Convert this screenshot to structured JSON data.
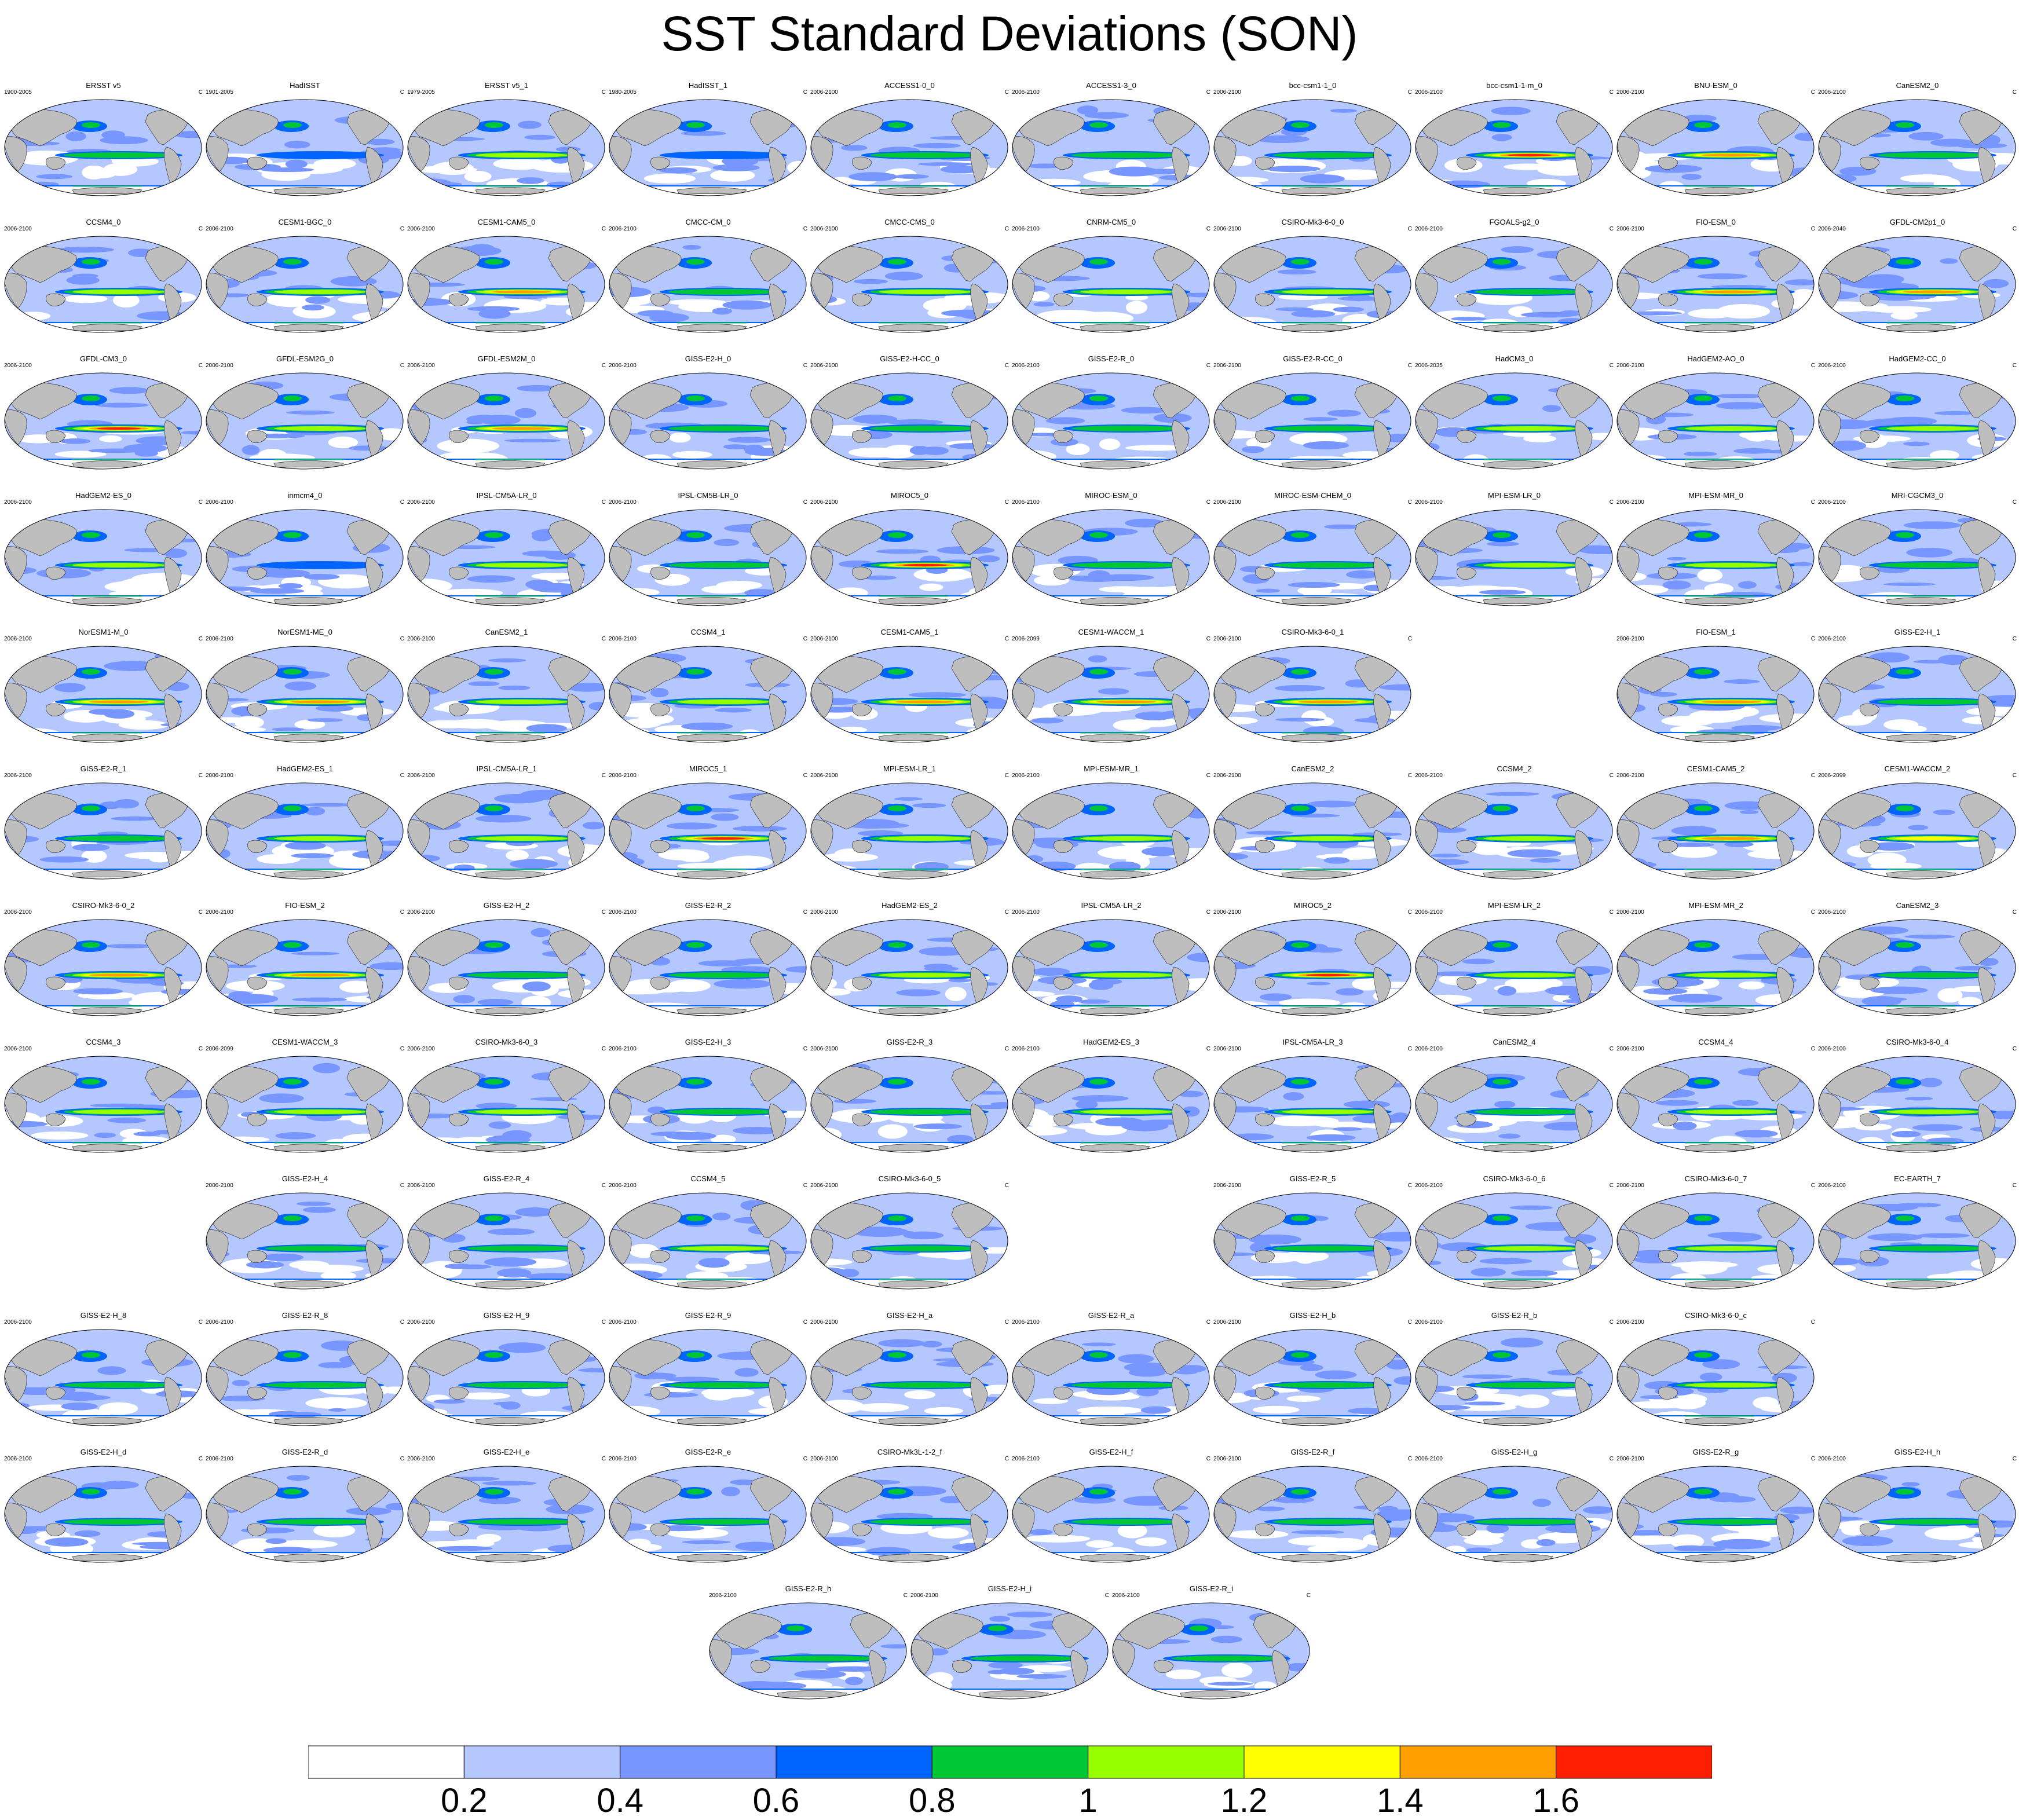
{
  "title": "SST Standard Deviations (SON)",
  "unit": "C",
  "colorbar": {
    "labels": [
      "0.2",
      "0.4",
      "0.6",
      "0.8",
      "1",
      "1.2",
      "1.4",
      "1.6"
    ],
    "bin_edges": [
      0,
      0.2,
      0.4,
      0.6,
      0.8,
      1.0,
      1.2,
      1.4,
      1.6,
      1.8
    ],
    "colors": [
      "#ffffff",
      "#b4c8ff",
      "#7896ff",
      "#0064ff",
      "#00c832",
      "#96ff00",
      "#ffff00",
      "#ffa000",
      "#ff1e00"
    ]
  },
  "panels": [
    {
      "name": "ERSST v5",
      "period": "1900-2005",
      "intensity": 0.45
    },
    {
      "name": "HadISST",
      "period": "1901-2005",
      "intensity": 0.2
    },
    {
      "name": "ERSST v5_1",
      "period": "1979-2005",
      "intensity": 0.5
    },
    {
      "name": "HadISST_1",
      "period": "1980-2005",
      "intensity": 0.25
    },
    {
      "name": "ACCESS1-0_0",
      "period": "2006-2100",
      "intensity": 0.35
    },
    {
      "name": "ACCESS1-3_0",
      "period": "2006-2100",
      "intensity": 0.4
    },
    {
      "name": "bcc-csm1-1_0",
      "period": "2006-2100",
      "intensity": 0.45
    },
    {
      "name": "bcc-csm1-1-m_0",
      "period": "2006-2100",
      "intensity": 0.85
    },
    {
      "name": "BNU-ESM_0",
      "period": "2006-2100",
      "intensity": 0.8
    },
    {
      "name": "CanESM2_0",
      "period": "2006-2100",
      "intensity": 0.45
    },
    {
      "name": "CCSM4_0",
      "period": "2006-2100",
      "intensity": 0.5
    },
    {
      "name": "CESM1-BGC_0",
      "period": "2006-2100",
      "intensity": 0.5
    },
    {
      "name": "CESM1-CAM5_0",
      "period": "2006-2100",
      "intensity": 0.8
    },
    {
      "name": "CMCC-CM_0",
      "period": "2006-2100",
      "intensity": 0.45
    },
    {
      "name": "CMCC-CMS_0",
      "period": "2006-2100",
      "intensity": 0.55
    },
    {
      "name": "CNRM-CM5_0",
      "period": "2006-2100",
      "intensity": 0.55
    },
    {
      "name": "CSIRO-Mk3-6-0_0",
      "period": "2006-2100",
      "intensity": 0.6
    },
    {
      "name": "FGOALS-g2_0",
      "period": "2006-2100",
      "intensity": 0.45
    },
    {
      "name": "FIO-ESM_0",
      "period": "2006-2100",
      "intensity": 0.75
    },
    {
      "name": "GFDL-CM2p1_0",
      "period": "2006-2040",
      "intensity": 0.75
    },
    {
      "name": "GFDL-CM3_0",
      "period": "2006-2100",
      "intensity": 0.85
    },
    {
      "name": "GFDL-ESM2G_0",
      "period": "2006-2100",
      "intensity": 0.55
    },
    {
      "name": "GFDL-ESM2M_0",
      "period": "2006-2100",
      "intensity": 0.75
    },
    {
      "name": "GISS-E2-H_0",
      "period": "2006-2100",
      "intensity": 0.3
    },
    {
      "name": "GISS-E2-H-CC_0",
      "period": "2006-2100",
      "intensity": 0.3
    },
    {
      "name": "GISS-E2-R_0",
      "period": "2006-2100",
      "intensity": 0.3
    },
    {
      "name": "GISS-E2-R-CC_0",
      "period": "2006-2100",
      "intensity": 0.3
    },
    {
      "name": "HadCM3_0",
      "period": "2006-2035",
      "intensity": 0.55
    },
    {
      "name": "HadGEM2-AO_0",
      "period": "2006-2100",
      "intensity": 0.5
    },
    {
      "name": "HadGEM2-CC_0",
      "period": "2006-2100",
      "intensity": 0.5
    },
    {
      "name": "HadGEM2-ES_0",
      "period": "2006-2100",
      "intensity": 0.5
    },
    {
      "name": "inmcm4_0",
      "period": "2006-2100",
      "intensity": 0.15
    },
    {
      "name": "IPSL-CM5A-LR_0",
      "period": "2006-2100",
      "intensity": 0.5
    },
    {
      "name": "IPSL-CM5B-LR_0",
      "period": "2006-2100",
      "intensity": 0.45
    },
    {
      "name": "MIROC5_0",
      "period": "2006-2100",
      "intensity": 0.95
    },
    {
      "name": "MIROC-ESM_0",
      "period": "2006-2100",
      "intensity": 0.3
    },
    {
      "name": "MIROC-ESM-CHEM_0",
      "period": "2006-2100",
      "intensity": 0.3
    },
    {
      "name": "MPI-ESM-LR_0",
      "period": "2006-2100",
      "intensity": 0.55
    },
    {
      "name": "MPI-ESM-MR_0",
      "period": "2006-2100",
      "intensity": 0.55
    },
    {
      "name": "MRI-CGCM3_0",
      "period": "2006-2100",
      "intensity": 0.35
    },
    {
      "name": "NorESM1-M_0",
      "period": "2006-2100",
      "intensity": 0.75
    },
    {
      "name": "NorESM1-ME_0",
      "period": "2006-2100",
      "intensity": 0.8
    },
    {
      "name": "CanESM2_1",
      "period": "2006-2100",
      "intensity": 0.5
    },
    {
      "name": "CCSM4_1",
      "period": "2006-2100",
      "intensity": 0.55
    },
    {
      "name": "CESM1-CAM5_1",
      "period": "2006-2100",
      "intensity": 0.8
    },
    {
      "name": "CESM1-WACCM_1",
      "period": "2006-2099",
      "intensity": 0.75
    },
    {
      "name": "CSIRO-Mk3-6-0_1",
      "period": "2006-2100",
      "intensity": 0.75
    },
    {
      "name": "FIO-ESM_1",
      "period": "2006-2100",
      "intensity": 0.75
    },
    {
      "name": "GISS-E2-H_1",
      "period": "2006-2100",
      "intensity": 0.3
    },
    {
      "name": "GISS-E2-R_1",
      "period": "2006-2100",
      "intensity": 0.3
    },
    {
      "name": "HadGEM2-ES_1",
      "period": "2006-2100",
      "intensity": 0.5
    },
    {
      "name": "IPSL-CM5A-LR_1",
      "period": "2006-2100",
      "intensity": 0.5
    },
    {
      "name": "MIROC5_1",
      "period": "2006-2100",
      "intensity": 0.95
    },
    {
      "name": "MPI-ESM-LR_1",
      "period": "2006-2100",
      "intensity": 0.55
    },
    {
      "name": "MPI-ESM-MR_1",
      "period": "2006-2100",
      "intensity": 0.6
    },
    {
      "name": "CanESM2_2",
      "period": "2006-2100",
      "intensity": 0.5
    },
    {
      "name": "CCSM4_2",
      "period": "2006-2100",
      "intensity": 0.55
    },
    {
      "name": "CESM1-CAM5_2",
      "period": "2006-2100",
      "intensity": 0.8
    },
    {
      "name": "CESM1-WACCM_2",
      "period": "2006-2099",
      "intensity": 0.7
    },
    {
      "name": "CSIRO-Mk3-6-0_2",
      "period": "2006-2100",
      "intensity": 0.75
    },
    {
      "name": "FIO-ESM_2",
      "period": "2006-2100",
      "intensity": 0.75
    },
    {
      "name": "GISS-E2-H_2",
      "period": "2006-2100",
      "intensity": 0.3
    },
    {
      "name": "GISS-E2-R_2",
      "period": "2006-2100",
      "intensity": 0.3
    },
    {
      "name": "HadGEM2-ES_2",
      "period": "2006-2100",
      "intensity": 0.5
    },
    {
      "name": "IPSL-CM5A-LR_2",
      "period": "2006-2100",
      "intensity": 0.5
    },
    {
      "name": "MIROC5_2",
      "period": "2006-2100",
      "intensity": 0.95
    },
    {
      "name": "MPI-ESM-LR_2",
      "period": "2006-2100",
      "intensity": 0.55
    },
    {
      "name": "MPI-ESM-MR_2",
      "period": "2006-2100",
      "intensity": 0.55
    },
    {
      "name": "CanESM2_3",
      "period": "2006-2100",
      "intensity": 0.45
    },
    {
      "name": "CCSM4_3",
      "period": "2006-2100",
      "intensity": 0.55
    },
    {
      "name": "CESM1-WACCM_3",
      "period": "2006-2099",
      "intensity": 0.55
    },
    {
      "name": "CSIRO-Mk3-6-0_3",
      "period": "2006-2100",
      "intensity": 0.6
    },
    {
      "name": "GISS-E2-H_3",
      "period": "2006-2100",
      "intensity": 0.3
    },
    {
      "name": "GISS-E2-R_3",
      "period": "2006-2100",
      "intensity": 0.3
    },
    {
      "name": "HadGEM2-ES_3",
      "period": "2006-2100",
      "intensity": 0.5
    },
    {
      "name": "IPSL-CM5A-LR_3",
      "period": "2006-2100",
      "intensity": 0.5
    },
    {
      "name": "CanESM2_4",
      "period": "2006-2100",
      "intensity": 0.45
    },
    {
      "name": "CCSM4_4",
      "period": "2006-2100",
      "intensity": 0.55
    },
    {
      "name": "CSIRO-Mk3-6-0_4",
      "period": "2006-2100",
      "intensity": 0.55
    },
    {
      "name": "GISS-E2-H_4",
      "period": "2006-2100",
      "intensity": 0.3
    },
    {
      "name": "GISS-E2-R_4",
      "period": "2006-2100",
      "intensity": 0.3
    },
    {
      "name": "CCSM4_5",
      "period": "2006-2100",
      "intensity": 0.55
    },
    {
      "name": "CSIRO-Mk3-6-0_5",
      "period": "2006-2100",
      "intensity": 0.45
    },
    {
      "name": "GISS-E2-R_5",
      "period": "2006-2100",
      "intensity": 0.3
    },
    {
      "name": "CSIRO-Mk3-6-0_6",
      "period": "2006-2100",
      "intensity": 0.5
    },
    {
      "name": "CSIRO-Mk3-6-0_7",
      "period": "2006-2100",
      "intensity": 0.55
    },
    {
      "name": "EC-EARTH_7",
      "period": "2006-2100",
      "intensity": 0.45
    },
    {
      "name": "GISS-E2-H_8",
      "period": "2006-2100",
      "intensity": 0.3
    },
    {
      "name": "GISS-E2-R_8",
      "period": "2006-2100",
      "intensity": 0.3
    },
    {
      "name": "GISS-E2-H_9",
      "period": "2006-2100",
      "intensity": 0.3
    },
    {
      "name": "GISS-E2-R_9",
      "period": "2006-2100",
      "intensity": 0.3
    },
    {
      "name": "GISS-E2-H_a",
      "period": "2006-2100",
      "intensity": 0.3
    },
    {
      "name": "GISS-E2-R_a",
      "period": "2006-2100",
      "intensity": 0.3
    },
    {
      "name": "GISS-E2-H_b",
      "period": "2006-2100",
      "intensity": 0.3
    },
    {
      "name": "GISS-E2-R_b",
      "period": "2006-2100",
      "intensity": 0.3
    },
    {
      "name": "CSIRO-Mk3-6-0_c",
      "period": "2006-2100",
      "intensity": 0.6
    },
    {
      "name": "GISS-E2-H_d",
      "period": "2006-2100",
      "intensity": 0.3
    },
    {
      "name": "GISS-E2-R_d",
      "period": "2006-2100",
      "intensity": 0.3
    },
    {
      "name": "GISS-E2-H_e",
      "period": "2006-2100",
      "intensity": 0.3
    },
    {
      "name": "GISS-E2-R_e",
      "period": "2006-2100",
      "intensity": 0.3
    },
    {
      "name": "CSIRO-Mk3L-1-2_f",
      "period": "2006-2100",
      "intensity": 0.3
    },
    {
      "name": "GISS-E2-H_f",
      "period": "2006-2100",
      "intensity": 0.3
    },
    {
      "name": "GISS-E2-R_f",
      "period": "2006-2100",
      "intensity": 0.3
    },
    {
      "name": "GISS-E2-H_g",
      "period": "2006-2100",
      "intensity": 0.3
    },
    {
      "name": "GISS-E2-R_g",
      "period": "2006-2100",
      "intensity": 0.3
    },
    {
      "name": "GISS-E2-H_h",
      "period": "2006-2100",
      "intensity": 0.3
    },
    {
      "name": "GISS-E2-R_h",
      "period": "2006-2100",
      "intensity": 0.3
    },
    {
      "name": "GISS-E2-H_i",
      "period": "2006-2100",
      "intensity": 0.3
    },
    {
      "name": "GISS-E2-R_i",
      "period": "2006-2100",
      "intensity": 0.3
    }
  ]
}
